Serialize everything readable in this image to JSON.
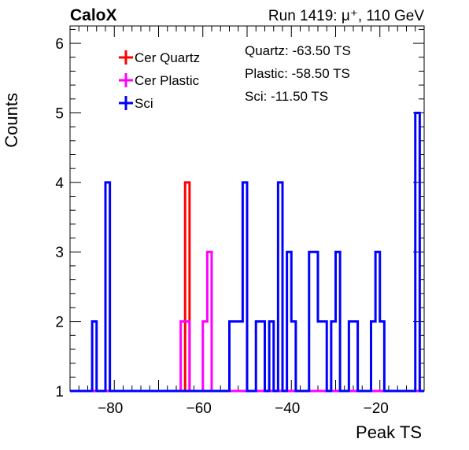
{
  "header": {
    "experiment": "CaloX",
    "run_info": "Run 1419:   μ⁺, 110 GeV"
  },
  "annotations": [
    "Quartz: -63.50 TS",
    "Plastic: -58.50 TS",
    "Sci: -11.50 TS"
  ],
  "chart_data": {
    "type": "histogram",
    "xlabel": "Peak TS",
    "ylabel": "Counts",
    "xlim": [
      -90,
      -10
    ],
    "ylim": [
      1,
      6.25
    ],
    "x_ticks": [
      -80,
      -60,
      -40,
      -20
    ],
    "y_ticks": [
      1,
      2,
      3,
      4,
      5,
      6
    ],
    "bin_width": 1,
    "baseline": 1,
    "legend_position": "top-left",
    "series": [
      {
        "name": "Cer Quartz",
        "color": "#ff0000",
        "bins": [
          {
            "x": -64,
            "y": 4
          }
        ]
      },
      {
        "name": "Cer Plastic",
        "color": "#ff00ff",
        "bins": [
          {
            "x": -65,
            "y": 2
          },
          {
            "x": -64,
            "y": 2
          },
          {
            "x": -60,
            "y": 2
          },
          {
            "x": -59,
            "y": 3
          }
        ]
      },
      {
        "name": "Sci",
        "color": "#0000ff",
        "bins": [
          {
            "x": -85,
            "y": 2
          },
          {
            "x": -82,
            "y": 4
          },
          {
            "x": -54,
            "y": 2
          },
          {
            "x": -53,
            "y": 2
          },
          {
            "x": -52,
            "y": 2
          },
          {
            "x": -51,
            "y": 4
          },
          {
            "x": -48,
            "y": 2
          },
          {
            "x": -47,
            "y": 2
          },
          {
            "x": -45,
            "y": 2
          },
          {
            "x": -43,
            "y": 4
          },
          {
            "x": -41,
            "y": 3
          },
          {
            "x": -40,
            "y": 2
          },
          {
            "x": -36,
            "y": 3
          },
          {
            "x": -35,
            "y": 3
          },
          {
            "x": -34,
            "y": 2
          },
          {
            "x": -33,
            "y": 2
          },
          {
            "x": -31,
            "y": 2
          },
          {
            "x": -30,
            "y": 3
          },
          {
            "x": -27,
            "y": 2
          },
          {
            "x": -26,
            "y": 2
          },
          {
            "x": -22,
            "y": 2
          },
          {
            "x": -21,
            "y": 3
          },
          {
            "x": -20,
            "y": 2
          },
          {
            "x": -12,
            "y": 5
          }
        ]
      }
    ]
  }
}
